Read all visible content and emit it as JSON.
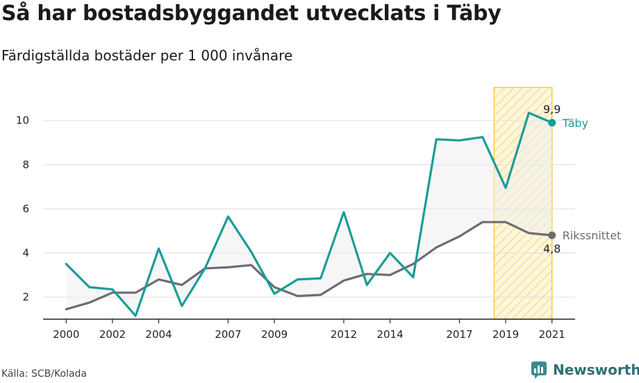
{
  "chart_data": {
    "type": "line",
    "title": "Så har bostadsbyggandet utvecklats i Täby",
    "subtitle": "Färdigställda bostäder per 1 000 invånare",
    "x": [
      2000,
      2001,
      2002,
      2003,
      2004,
      2005,
      2006,
      2007,
      2008,
      2009,
      2010,
      2011,
      2012,
      2013,
      2014,
      2015,
      2016,
      2017,
      2018,
      2019,
      2020,
      2021
    ],
    "series": [
      {
        "name": "Täby",
        "color": "#1a9c97",
        "values": [
          3.5,
          2.45,
          2.35,
          1.15,
          4.2,
          1.6,
          3.3,
          5.65,
          4.05,
          2.15,
          2.8,
          2.85,
          5.85,
          2.55,
          4.0,
          2.9,
          9.15,
          9.1,
          9.25,
          6.95,
          10.35,
          9.9
        ],
        "end_label": "9,9"
      },
      {
        "name": "Rikssnittet",
        "color": "#6e6b73",
        "values": [
          1.45,
          1.75,
          2.2,
          2.2,
          2.8,
          2.55,
          3.3,
          3.35,
          3.45,
          2.45,
          2.05,
          2.1,
          2.75,
          3.05,
          3.0,
          3.5,
          4.25,
          4.75,
          5.4,
          5.4,
          4.9,
          4.8
        ],
        "end_label": "4,8"
      }
    ],
    "xlim": [
      1999,
      2022
    ],
    "ylim": [
      1,
      11.5
    ],
    "yticks": [
      2,
      4,
      6,
      8,
      10
    ],
    "ytick_labels": [
      "2",
      "4",
      "6",
      "8",
      "10"
    ],
    "xticks": [
      2000,
      2002,
      2004,
      2007,
      2009,
      2012,
      2014,
      2017,
      2019,
      2021
    ],
    "xtick_labels": [
      "2000",
      "2002",
      "2004",
      "2007",
      "2009",
      "2012",
      "2014",
      "2017",
      "2019",
      "2021"
    ],
    "highlight": {
      "from": 2018.5,
      "to": 2021,
      "color": "#f5c842"
    },
    "fill_between_color": "#eeeeee",
    "grid": "horizontal",
    "source": "Källa: SCB/Kolada",
    "brand": "Newsworthy"
  }
}
